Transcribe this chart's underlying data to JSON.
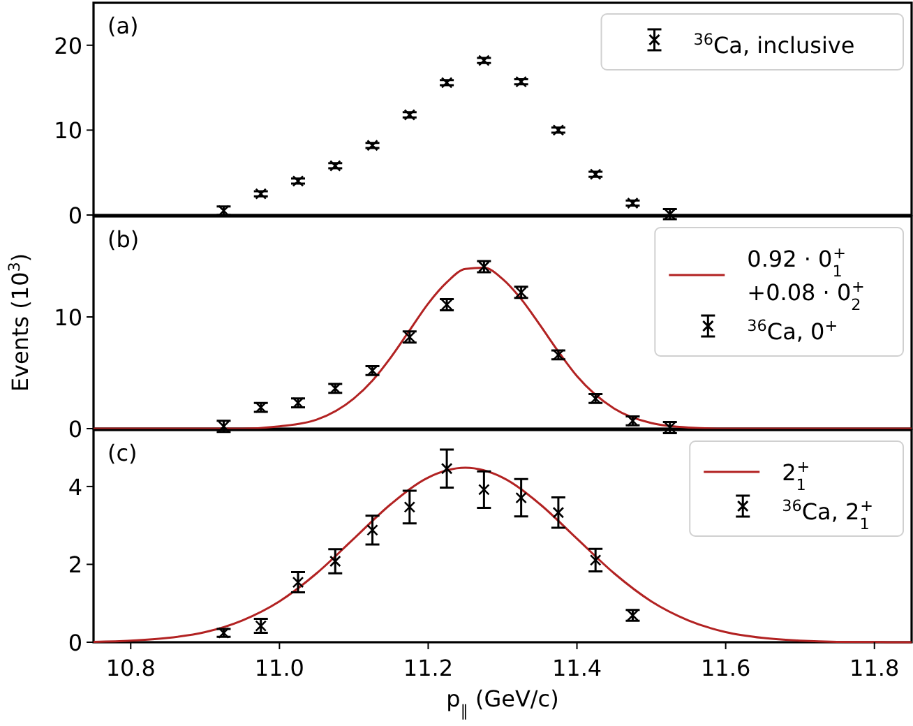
{
  "chart_data": [
    {
      "type": "scatter",
      "xlim": [
        10.75,
        11.85
      ],
      "xticks": [
        10.8,
        11.0,
        11.2,
        11.4,
        11.6,
        11.8
      ],
      "ylim": [
        0,
        25
      ],
      "yticks": [
        0,
        10,
        20
      ],
      "tick_labels": "y",
      "legend": "top right",
      "grid": false,
      "annotations": [
        "(a)"
      ],
      "series": [
        {
          "name": "$^{36}$Ca, inclusive",
          "type": "scatter",
          "marker": "cross",
          "color": "#000000",
          "x": [
            10.925,
            10.975,
            11.025,
            11.075,
            11.125,
            11.175,
            11.225,
            11.275,
            11.325,
            11.375,
            11.425,
            11.475,
            11.525
          ],
          "values": [
            0.5,
            2.5,
            4.0,
            5.8,
            8.2,
            11.8,
            15.6,
            18.2,
            15.7,
            10.0,
            4.8,
            1.4,
            0.1
          ],
          "errors": [
            0.5,
            0.3,
            0.3,
            0.3,
            0.3,
            0.3,
            0.3,
            0.3,
            0.3,
            0.3,
            0.3,
            0.3,
            0.6
          ]
        }
      ]
    },
    {
      "type": "scatter",
      "xlim": [
        10.75,
        11.85
      ],
      "xticks": [
        10.8,
        11.0,
        11.2,
        11.4,
        11.6,
        11.8
      ],
      "ylim": [
        0,
        19
      ],
      "yticks": [
        0,
        10
      ],
      "tick_labels": "y",
      "legend": "top right",
      "grid": false,
      "ylabel": "Events (10$^{3}$)",
      "annotations": [
        "(b)"
      ],
      "series": [
        {
          "name": "0.92 · 0$_{1}$$^{+}$\n+0.08 · 0$_{2}$$^{+}$",
          "type": "line",
          "marker": "none",
          "line_style": "solid",
          "color": "#b22222",
          "x": [
            10.75,
            10.85,
            10.9,
            10.95,
            11.0,
            11.05,
            11.1,
            11.125,
            11.15,
            11.175,
            11.2,
            11.225,
            11.25,
            11.275,
            11.3,
            11.325,
            11.35,
            11.375,
            11.4,
            11.45,
            11.5,
            11.55,
            11.6,
            11.7,
            11.85
          ],
          "values": [
            0,
            0,
            0,
            0,
            0.2,
            0.8,
            2.7,
            4.3,
            6.4,
            8.8,
            11.2,
            13.1,
            14.3,
            14.4,
            13.4,
            11.6,
            9.3,
            6.9,
            4.7,
            1.8,
            0.5,
            0.1,
            0,
            0,
            0
          ]
        },
        {
          "name": "$^{36}$Ca, 0$^{+}$",
          "type": "scatter",
          "marker": "cross",
          "color": "#000000",
          "x": [
            10.925,
            10.975,
            11.025,
            11.075,
            11.125,
            11.175,
            11.225,
            11.275,
            11.325,
            11.375,
            11.425,
            11.475,
            11.525
          ],
          "values": [
            0.2,
            1.9,
            2.3,
            3.6,
            5.2,
            8.2,
            11.1,
            14.5,
            12.2,
            6.6,
            2.7,
            0.7,
            0.1
          ],
          "errors": [
            0.5,
            0.4,
            0.4,
            0.4,
            0.4,
            0.5,
            0.5,
            0.5,
            0.5,
            0.4,
            0.4,
            0.4,
            0.5
          ]
        }
      ]
    },
    {
      "type": "scatter",
      "xlim": [
        10.75,
        11.85
      ],
      "xticks": [
        10.8,
        {
          "value": 11.0,
          "label": "11.0"
        },
        11.2,
        11.4,
        11.6,
        11.8
      ],
      "ylim": [
        0,
        5.45
      ],
      "yticks": [
        0,
        2,
        4
      ],
      "legend": "top right",
      "grid": false,
      "xlabel": "p$_{∥}$ (GeV/c)",
      "annotations": [
        "(c)"
      ],
      "series": [
        {
          "name": "2$_{1}$$^{+}$",
          "type": "line",
          "marker": "none",
          "line_style": "solid",
          "color": "#b22222",
          "x": [
            10.75,
            10.8,
            10.85,
            10.9,
            10.95,
            11.0,
            11.05,
            11.1,
            11.15,
            11.2,
            11.25,
            11.3,
            11.35,
            11.4,
            11.45,
            11.5,
            11.55,
            11.6,
            11.65,
            11.7,
            11.75,
            11.85
          ],
          "values": [
            0.01,
            0.04,
            0.11,
            0.26,
            0.56,
            1.05,
            1.77,
            2.66,
            3.55,
            4.23,
            4.48,
            4.23,
            3.55,
            2.66,
            1.77,
            1.05,
            0.56,
            0.26,
            0.11,
            0.04,
            0.01,
            0
          ]
        },
        {
          "name": "$^{36}$Ca, 2$_{1}$$^{+}$",
          "type": "scatter",
          "marker": "cross",
          "color": "#000000",
          "x": [
            10.925,
            10.975,
            11.025,
            11.075,
            11.125,
            11.175,
            11.225,
            11.275,
            11.325,
            11.375,
            11.425,
            11.475
          ],
          "values": [
            0.24,
            0.42,
            1.54,
            2.08,
            2.88,
            3.47,
            4.46,
            3.92,
            3.71,
            3.33,
            2.11,
            0.69
          ],
          "errors": [
            0.1,
            0.18,
            0.26,
            0.31,
            0.37,
            0.42,
            0.49,
            0.47,
            0.48,
            0.39,
            0.29,
            0.14
          ]
        }
      ]
    }
  ]
}
